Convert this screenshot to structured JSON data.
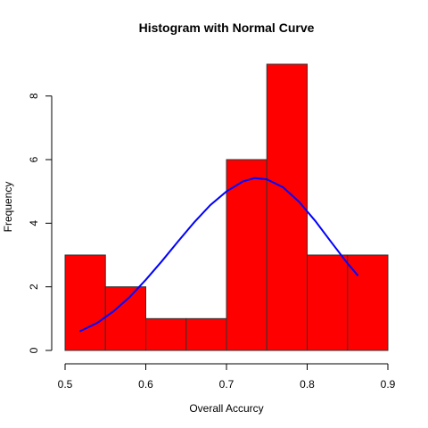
{
  "chart_data": {
    "type": "bar",
    "title": "Histogram with Normal Curve",
    "xlabel": "Overall Accurcy",
    "ylabel": "Frequency",
    "xlim": [
      0.5,
      0.9
    ],
    "ylim": [
      0,
      9
    ],
    "bin_edges": [
      0.5,
      0.55,
      0.6,
      0.65,
      0.7,
      0.75,
      0.8,
      0.85,
      0.9
    ],
    "values": [
      3,
      2,
      1,
      1,
      6,
      9,
      3,
      3
    ],
    "x_ticks": [
      0.5,
      0.6,
      0.7,
      0.8,
      0.9
    ],
    "x_tick_labels": [
      "0.5",
      "0.6",
      "0.7",
      "0.8",
      "0.9"
    ],
    "y_ticks": [
      0,
      2,
      4,
      6,
      8
    ],
    "y_tick_labels": [
      "0",
      "2",
      "4",
      "6",
      "8"
    ],
    "bar_color": "#ff0000",
    "bar_border_color": "#333333",
    "grid": false,
    "legend": "none",
    "curve": {
      "type": "line",
      "color": "#0000ff",
      "x": [
        0.518,
        0.54,
        0.56,
        0.58,
        0.6,
        0.62,
        0.64,
        0.66,
        0.68,
        0.7,
        0.72,
        0.735,
        0.75,
        0.77,
        0.79,
        0.81,
        0.83,
        0.85,
        0.863
      ],
      "y": [
        0.6,
        0.87,
        1.23,
        1.68,
        2.22,
        2.81,
        3.43,
        4.03,
        4.57,
        5.0,
        5.31,
        5.42,
        5.38,
        5.13,
        4.67,
        4.07,
        3.4,
        2.74,
        2.35
      ]
    }
  }
}
